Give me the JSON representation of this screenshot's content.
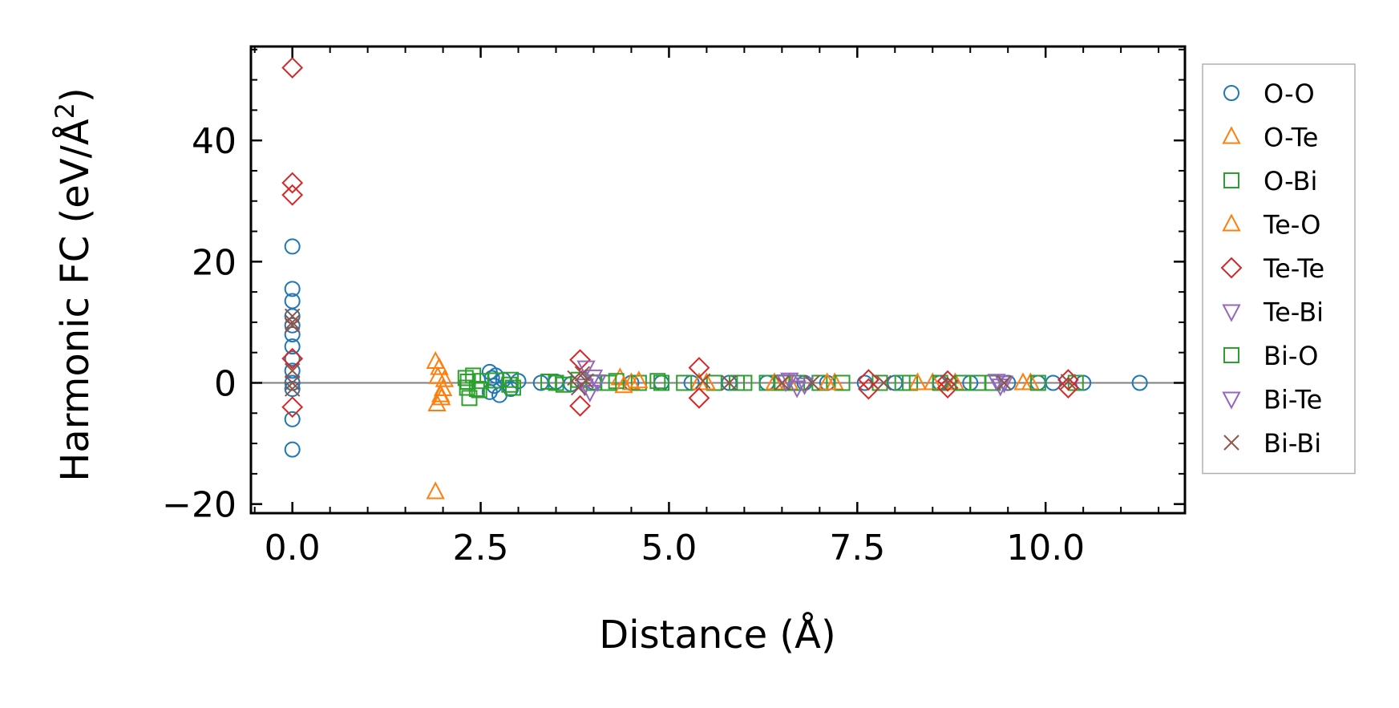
{
  "chart_data": {
    "type": "scatter",
    "title": "",
    "xlabel": "Distance (Å)",
    "ylabel_prefix": "Harmonic FC (eV/Å",
    "ylabel_sup": "2",
    "ylabel_suffix": ")",
    "xlim": [
      -0.55,
      11.85
    ],
    "ylim": [
      -21.5,
      55.5
    ],
    "xticks": [
      0.0,
      2.5,
      5.0,
      7.5,
      10.0
    ],
    "xtick_labels": [
      "0.0",
      "2.5",
      "5.0",
      "7.5",
      "10.0"
    ],
    "yticks": [
      -20,
      0,
      20,
      40
    ],
    "ytick_labels": [
      "−20",
      "0",
      "20",
      "40"
    ],
    "legend_position": "outside-right",
    "zero_line": true,
    "series": [
      {
        "name": "O-O",
        "marker": "circle",
        "color": "#1f77b4",
        "points": [
          [
            0,
            22.5
          ],
          [
            0,
            15.5
          ],
          [
            0,
            13.5
          ],
          [
            0,
            11
          ],
          [
            0,
            9.5
          ],
          [
            0,
            8
          ],
          [
            0,
            6
          ],
          [
            0,
            4
          ],
          [
            0,
            2
          ],
          [
            0,
            0
          ],
          [
            0,
            -1
          ],
          [
            0,
            -6
          ],
          [
            0,
            -11
          ],
          [
            2.62,
            1.8
          ],
          [
            2.62,
            -1.5
          ],
          [
            2.65,
            0.8
          ],
          [
            2.68,
            -0.5
          ],
          [
            2.7,
            1.2
          ],
          [
            2.75,
            -2
          ],
          [
            2.8,
            0.5
          ],
          [
            2.9,
            -1
          ],
          [
            3.0,
            0.3
          ],
          [
            3.3,
            0
          ],
          [
            3.5,
            0.2
          ],
          [
            3.7,
            -0.2
          ],
          [
            4.0,
            0.1
          ],
          [
            4.5,
            0
          ],
          [
            4.9,
            0
          ],
          [
            5.3,
            0
          ],
          [
            5.8,
            0
          ],
          [
            6.3,
            0
          ],
          [
            6.8,
            0
          ],
          [
            7.1,
            0
          ],
          [
            7.6,
            0
          ],
          [
            8.0,
            0
          ],
          [
            8.6,
            0
          ],
          [
            9.0,
            0
          ],
          [
            9.5,
            0
          ],
          [
            9.9,
            0
          ],
          [
            10.1,
            0
          ],
          [
            10.5,
            0
          ],
          [
            11.25,
            0
          ]
        ]
      },
      {
        "name": "O-Te",
        "marker": "triangle-up",
        "color": "#ff7f0e",
        "points": [
          [
            1.9,
            3.5
          ],
          [
            1.95,
            2.5
          ],
          [
            2.0,
            -1
          ],
          [
            1.92,
            -3.5
          ],
          [
            1.97,
            -2
          ],
          [
            2.02,
            0.5
          ],
          [
            1.9,
            -18
          ],
          [
            4.35,
            0.8
          ],
          [
            4.5,
            0
          ],
          [
            5.4,
            0
          ],
          [
            6.6,
            0
          ],
          [
            7.2,
            0
          ],
          [
            8.5,
            0
          ],
          [
            9.7,
            0
          ]
        ]
      },
      {
        "name": "O-Bi",
        "marker": "square",
        "color": "#2ca02c",
        "points": [
          [
            2.3,
            0.8
          ],
          [
            2.32,
            -0.8
          ],
          [
            2.35,
            -2.5
          ],
          [
            2.4,
            1.2
          ],
          [
            2.45,
            -1
          ],
          [
            2.5,
            0.3
          ],
          [
            2.7,
            0.4
          ],
          [
            2.9,
            0.5
          ],
          [
            2.93,
            -0.8
          ],
          [
            3.4,
            0.2
          ],
          [
            3.6,
            -0.3
          ],
          [
            3.8,
            0.5
          ],
          [
            4.0,
            0
          ],
          [
            4.3,
            0.3
          ],
          [
            4.6,
            0
          ],
          [
            4.85,
            0.3
          ],
          [
            5.2,
            0
          ],
          [
            5.6,
            0
          ],
          [
            6.0,
            0
          ],
          [
            6.3,
            0
          ],
          [
            6.7,
            0
          ],
          [
            7.0,
            0
          ],
          [
            7.3,
            0
          ],
          [
            7.8,
            0
          ],
          [
            8.2,
            0
          ],
          [
            8.6,
            0
          ],
          [
            9.1,
            0
          ],
          [
            9.3,
            0
          ],
          [
            10.4,
            0
          ]
        ]
      },
      {
        "name": "Te-O",
        "marker": "triangle-up",
        "color": "#ff7f0e",
        "points": [
          [
            1.93,
            1
          ],
          [
            1.98,
            -2.5
          ],
          [
            4.4,
            -0.5
          ],
          [
            4.6,
            0.3
          ],
          [
            5.5,
            0
          ],
          [
            6.4,
            0
          ],
          [
            7.1,
            0
          ],
          [
            8.3,
            0
          ],
          [
            8.8,
            0
          ],
          [
            9.8,
            0
          ]
        ]
      },
      {
        "name": "Te-Te",
        "marker": "diamond",
        "color": "#d62728",
        "points": [
          [
            0,
            52
          ],
          [
            0,
            33
          ],
          [
            0,
            31
          ],
          [
            0,
            4
          ],
          [
            0,
            -4
          ],
          [
            3.82,
            3.8
          ],
          [
            3.82,
            -3.8
          ],
          [
            5.4,
            2.5
          ],
          [
            5.4,
            -2.5
          ],
          [
            7.65,
            0.5
          ],
          [
            7.65,
            -1
          ],
          [
            8.7,
            0.3
          ],
          [
            8.7,
            -0.8
          ],
          [
            10.3,
            0.5
          ],
          [
            10.3,
            -0.8
          ]
        ]
      },
      {
        "name": "Te-Bi",
        "marker": "triangle-down",
        "color": "#9467bd",
        "points": [
          [
            3.9,
            2.5
          ],
          [
            3.95,
            -1.5
          ],
          [
            4.0,
            1
          ],
          [
            6.6,
            0.5
          ],
          [
            6.7,
            -0.8
          ],
          [
            9.35,
            0.3
          ],
          [
            9.4,
            -0.5
          ]
        ]
      },
      {
        "name": "Bi-O",
        "marker": "square",
        "color": "#2ca02c",
        "points": [
          [
            2.33,
            0.2
          ],
          [
            2.48,
            -1.2
          ],
          [
            2.88,
            -0.3
          ],
          [
            3.5,
            0
          ],
          [
            4.2,
            0
          ],
          [
            4.9,
            0
          ],
          [
            5.9,
            0
          ],
          [
            6.5,
            0
          ],
          [
            8.1,
            0
          ],
          [
            8.9,
            0
          ],
          [
            9.9,
            0
          ]
        ]
      },
      {
        "name": "Bi-Te",
        "marker": "triangle-down",
        "color": "#9467bd",
        "points": [
          [
            3.88,
            -0.5
          ],
          [
            4.05,
            0.2
          ],
          [
            6.55,
            0.2
          ],
          [
            6.8,
            -0.3
          ],
          [
            9.45,
            0
          ]
        ]
      },
      {
        "name": "Bi-Bi",
        "marker": "x",
        "color": "#8c564b",
        "points": [
          [
            0,
            11
          ],
          [
            0,
            10
          ],
          [
            0,
            9.5
          ],
          [
            0,
            2
          ],
          [
            0,
            0
          ],
          [
            0,
            -1
          ],
          [
            3.75,
            0.8
          ],
          [
            3.8,
            -0.8
          ],
          [
            3.85,
            1.5
          ],
          [
            3.9,
            0.3
          ],
          [
            5.45,
            0.3
          ],
          [
            5.8,
            0
          ],
          [
            6.5,
            0
          ],
          [
            6.9,
            0
          ],
          [
            7.85,
            0
          ],
          [
            8.7,
            0
          ],
          [
            9.45,
            0
          ],
          [
            10.3,
            0.2
          ]
        ]
      }
    ]
  }
}
